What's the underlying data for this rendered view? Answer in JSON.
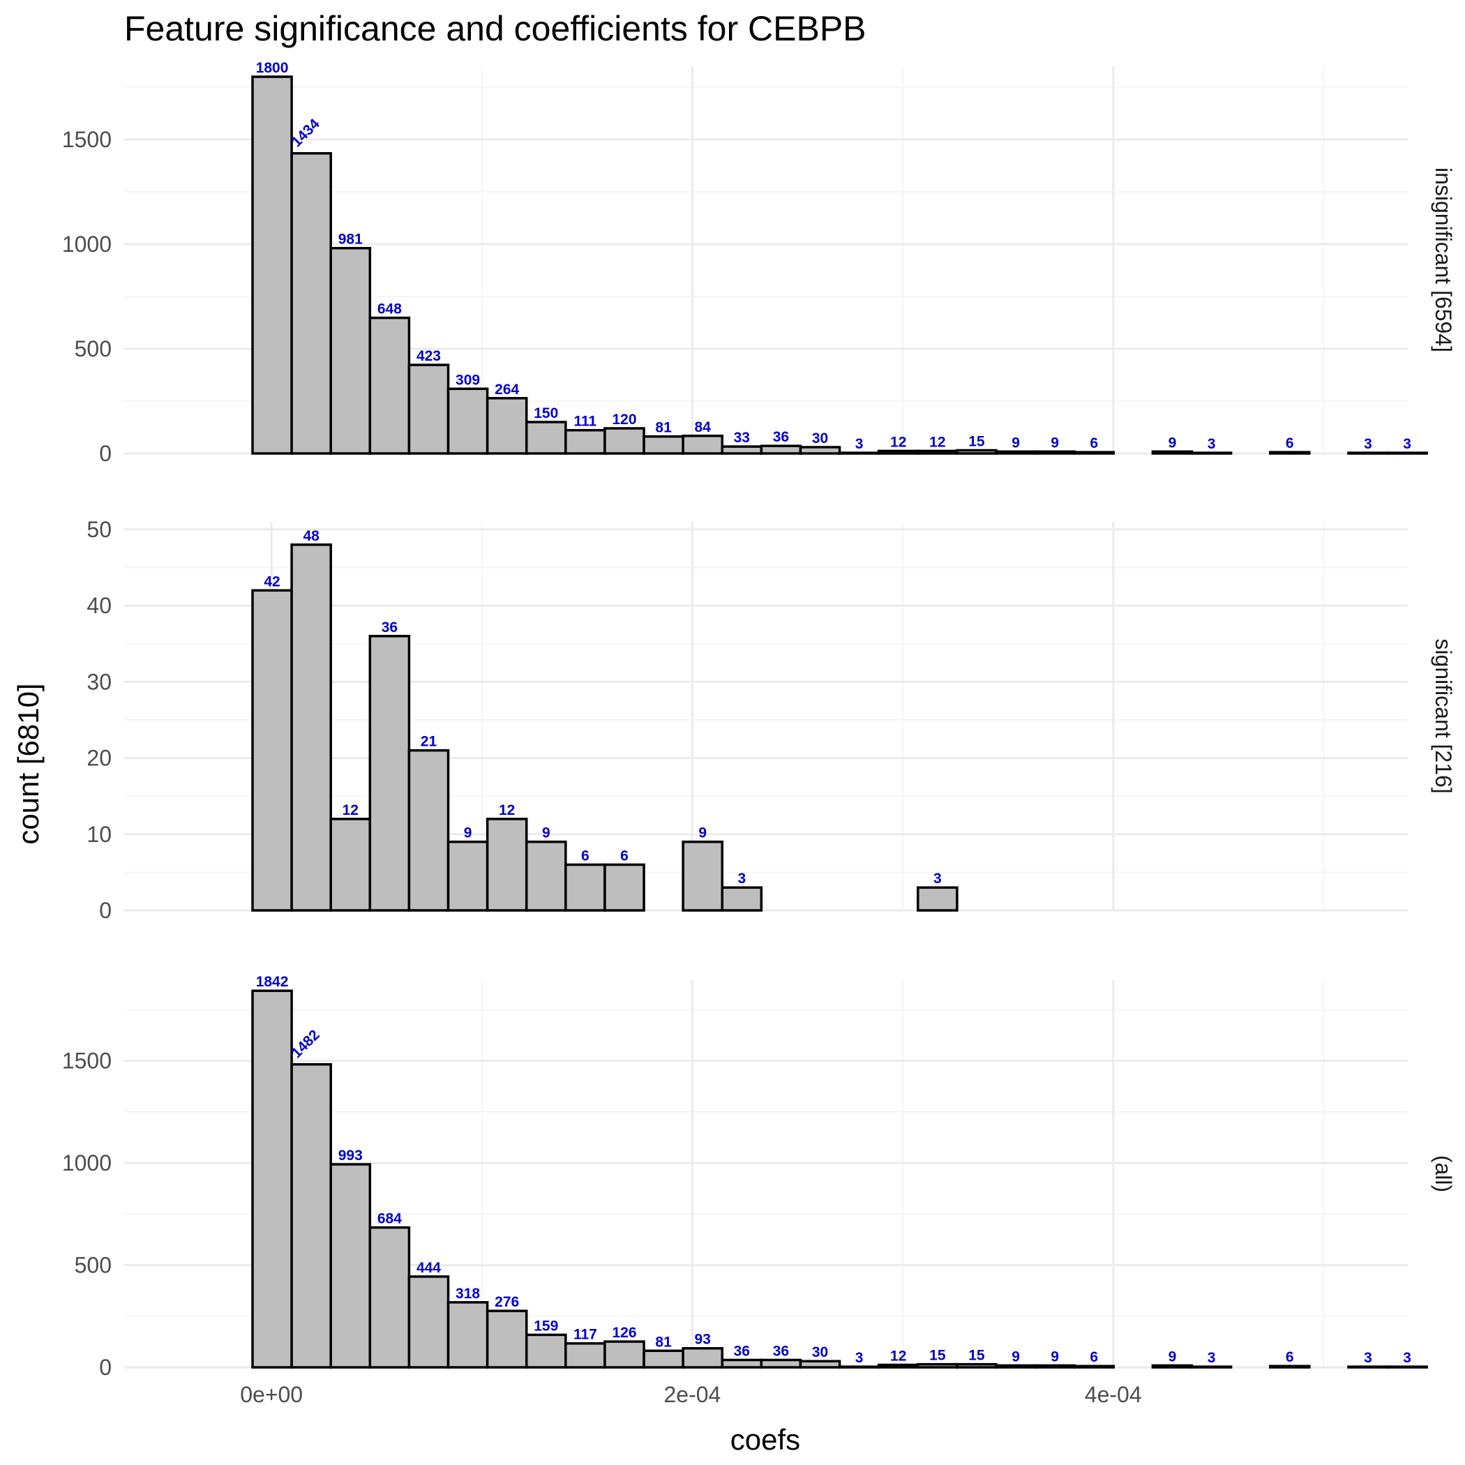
{
  "chart_data": {
    "type": "bar",
    "title": "Feature significance and coefficients for CEBPB",
    "xlabel": "coefs",
    "ylabel": "count [6810]",
    "x_ticks": [
      {
        "value": 0,
        "label": "0e+00"
      },
      {
        "value": 0.0002,
        "label": "2e-04"
      },
      {
        "value": 0.0004,
        "label": "4e-04"
      }
    ],
    "xlim": [
      -7e-05,
      0.00054
    ],
    "bin_start": -9e-06,
    "bin_width": 1.86e-05,
    "grid": true,
    "panels": [
      {
        "name": "insignificant [6594]",
        "ylim": [
          0,
          1850
        ],
        "y_ticks": [
          0,
          500,
          1000,
          1500
        ],
        "values": [
          1800,
          1434,
          981,
          648,
          423,
          309,
          264,
          150,
          111,
          120,
          81,
          84,
          33,
          36,
          30,
          3,
          12,
          12,
          15,
          9,
          9,
          6,
          0,
          9,
          3,
          0,
          6,
          0,
          3,
          3
        ]
      },
      {
        "name": "significant [216]",
        "ylim": [
          0,
          51
        ],
        "y_ticks": [
          0,
          10,
          20,
          30,
          40,
          50
        ],
        "values": [
          42,
          48,
          12,
          36,
          21,
          9,
          12,
          9,
          6,
          6,
          0,
          9,
          3,
          0,
          0,
          0,
          0,
          3,
          0,
          0,
          0,
          0,
          0,
          0,
          0,
          0,
          0,
          0,
          0,
          0
        ]
      },
      {
        "name": "(all)",
        "ylim": [
          0,
          1894
        ],
        "y_ticks": [
          0,
          500,
          1000,
          1500
        ],
        "values": [
          1842,
          1482,
          993,
          684,
          444,
          318,
          276,
          159,
          117,
          126,
          81,
          93,
          36,
          36,
          30,
          3,
          12,
          15,
          15,
          9,
          9,
          6,
          0,
          9,
          3,
          0,
          6,
          0,
          3,
          3
        ]
      }
    ]
  }
}
